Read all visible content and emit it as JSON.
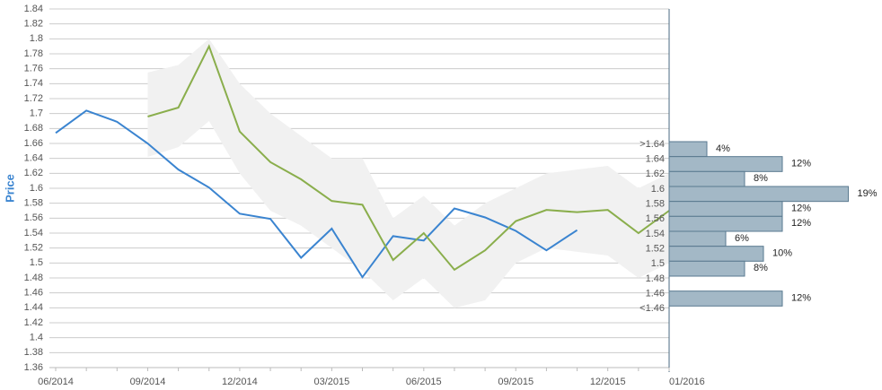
{
  "chart_data": [
    {
      "type": "line",
      "y_label": "Price",
      "categories": [
        "06/2014",
        null,
        null,
        "09/2014",
        null,
        null,
        "12/2014",
        null,
        null,
        "03/2015",
        null,
        null,
        "06/2015",
        null,
        null,
        "09/2015",
        null,
        null,
        "12/2015",
        null,
        "01/2016"
      ],
      "series": [
        {
          "color": "#3a84d0",
          "values": [
            1.674,
            1.704,
            1.689,
            1.66,
            1.625,
            1.601,
            1.566,
            1.559,
            1.507,
            1.546,
            1.481,
            1.536,
            1.53,
            1.573,
            1.561,
            1.543,
            1.517,
            1.544,
            null,
            null,
            null
          ]
        },
        {
          "color": "#8aae4c",
          "values": [
            null,
            null,
            null,
            1.696,
            1.708,
            1.79,
            1.676,
            1.635,
            1.612,
            1.583,
            1.578,
            1.504,
            1.54,
            1.491,
            1.517,
            1.556,
            1.571,
            1.568,
            1.571,
            1.54,
            1.57
          ]
        }
      ],
      "range": {
        "color": "#f1f1f1",
        "upper": [
          null,
          null,
          null,
          1.755,
          1.765,
          1.8,
          1.74,
          1.7,
          1.67,
          1.64,
          1.64,
          1.56,
          1.59,
          1.55,
          1.58,
          1.6,
          1.62,
          1.625,
          1.63,
          1.6,
          1.62
        ],
        "lower": [
          null,
          null,
          null,
          1.642,
          1.655,
          1.69,
          1.62,
          1.57,
          1.55,
          1.52,
          1.49,
          1.45,
          1.48,
          1.44,
          1.45,
          1.5,
          1.52,
          1.515,
          1.51,
          1.48,
          1.5
        ]
      },
      "ylim": [
        1.36,
        1.84
      ],
      "yticks": [
        1.36,
        1.38,
        1.4,
        1.42,
        1.44,
        1.46,
        1.48,
        1.5,
        1.52,
        1.54,
        1.56,
        1.58,
        1.6,
        1.62,
        1.64,
        1.66,
        1.68,
        1.7,
        1.72,
        1.74,
        1.76,
        1.78,
        1.8,
        1.82,
        1.84
      ],
      "grid": true
    },
    {
      "type": "hbar",
      "color": "#a3b8c6",
      "categories": [
        ">1.64",
        "1.64",
        "1.62",
        "1.6",
        "1.58",
        "1.56",
        "1.54",
        "1.52",
        "1.5",
        "1.48",
        "1.46",
        "<1.46"
      ],
      "values": [
        4,
        12,
        8,
        19,
        12,
        12,
        6,
        10,
        8,
        null,
        12,
        null
      ],
      "value_labels": [
        "4%",
        "12%",
        "8%",
        "19%",
        "12%",
        "12%",
        "6%",
        "10%",
        "8%",
        null,
        "12%",
        null
      ],
      "xlim": [
        0,
        20
      ]
    }
  ]
}
